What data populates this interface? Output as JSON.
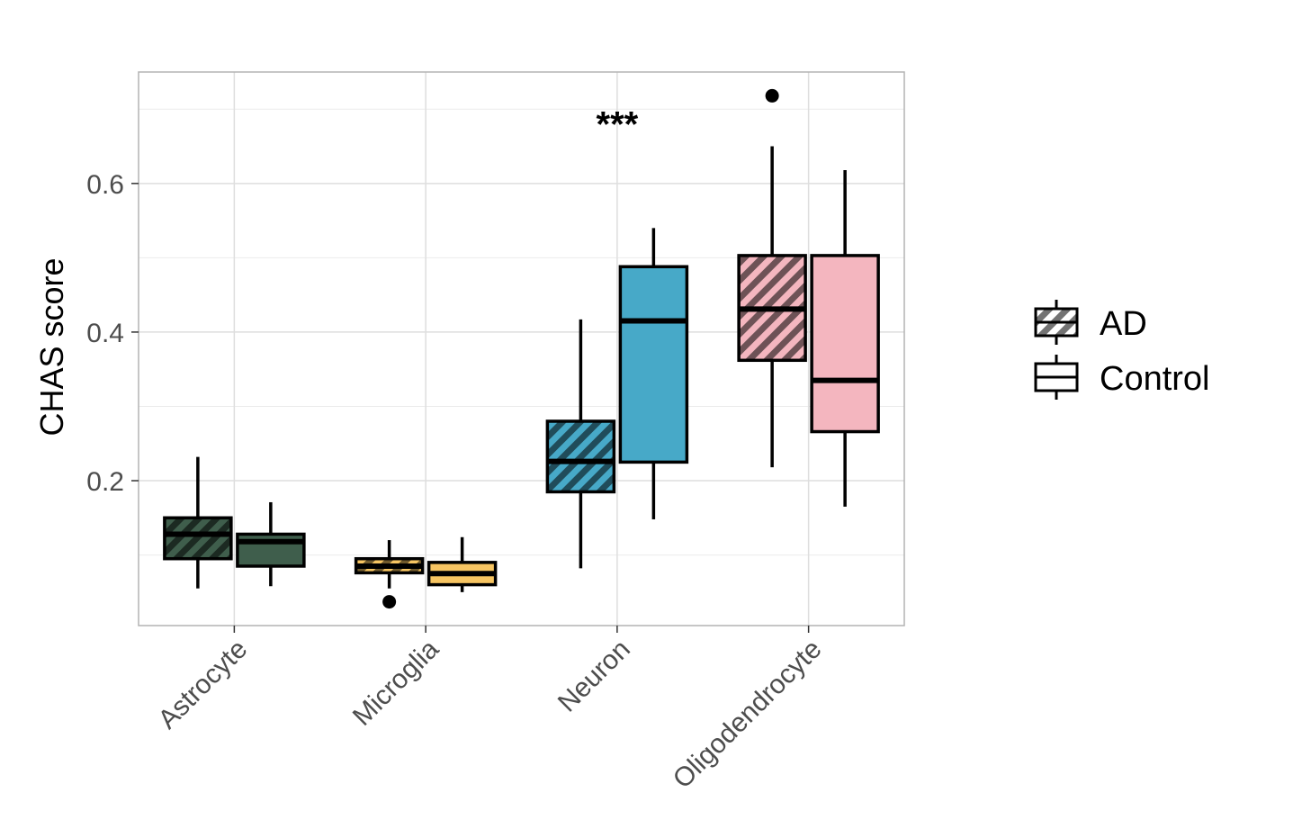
{
  "chart_data": {
    "type": "boxplot",
    "ylabel": "CHAS score",
    "xlabel": "",
    "categories": [
      "Astrocyte",
      "Microglia",
      "Neuron",
      "Oligodendrocyte"
    ],
    "ylim": [
      0.005,
      0.75
    ],
    "y_major_ticks": [
      0.2,
      0.4,
      0.6
    ],
    "y_tick_labels": [
      "0.2",
      "0.4",
      "0.6"
    ],
    "grid": true,
    "legend_position": "right",
    "series": [
      {
        "name": "AD",
        "pattern": "stripe",
        "boxes": [
          {
            "category": "Astrocyte",
            "whisker_low": 0.055,
            "q1": 0.095,
            "median": 0.128,
            "q3": 0.15,
            "whisker_high": 0.232,
            "outliers": []
          },
          {
            "category": "Microglia",
            "whisker_low": 0.055,
            "q1": 0.076,
            "median": 0.085,
            "q3": 0.095,
            "whisker_high": 0.12,
            "outliers": [
              0.037
            ]
          },
          {
            "category": "Neuron",
            "whisker_low": 0.082,
            "q1": 0.185,
            "median": 0.226,
            "q3": 0.28,
            "whisker_high": 0.417,
            "outliers": []
          },
          {
            "category": "Oligodendrocyte",
            "whisker_low": 0.218,
            "q1": 0.362,
            "median": 0.431,
            "q3": 0.503,
            "whisker_high": 0.65,
            "outliers": [
              0.718
            ]
          }
        ]
      },
      {
        "name": "Control",
        "pattern": "none",
        "boxes": [
          {
            "category": "Astrocyte",
            "whisker_low": 0.058,
            "q1": 0.085,
            "median": 0.118,
            "q3": 0.128,
            "whisker_high": 0.171,
            "outliers": []
          },
          {
            "category": "Microglia",
            "whisker_low": 0.05,
            "q1": 0.06,
            "median": 0.075,
            "q3": 0.09,
            "whisker_high": 0.124,
            "outliers": []
          },
          {
            "category": "Neuron",
            "whisker_low": 0.148,
            "q1": 0.225,
            "median": 0.415,
            "q3": 0.488,
            "whisker_high": 0.54,
            "outliers": []
          },
          {
            "category": "Oligodendrocyte",
            "whisker_low": 0.165,
            "q1": 0.266,
            "median": 0.335,
            "q3": 0.503,
            "whisker_high": 0.618,
            "outliers": []
          }
        ]
      }
    ],
    "colors": {
      "Astrocyte": "#3f5e4c",
      "Microglia": "#f7c562",
      "Neuron": "#47a9c8",
      "Oligodendrocyte": "#f4b6bf"
    },
    "annotations": [
      {
        "category": "Neuron",
        "text": "***",
        "y": 0.7
      }
    ],
    "legend": [
      {
        "label": "AD",
        "pattern": "stripe"
      },
      {
        "label": "Control",
        "pattern": "none"
      }
    ]
  }
}
